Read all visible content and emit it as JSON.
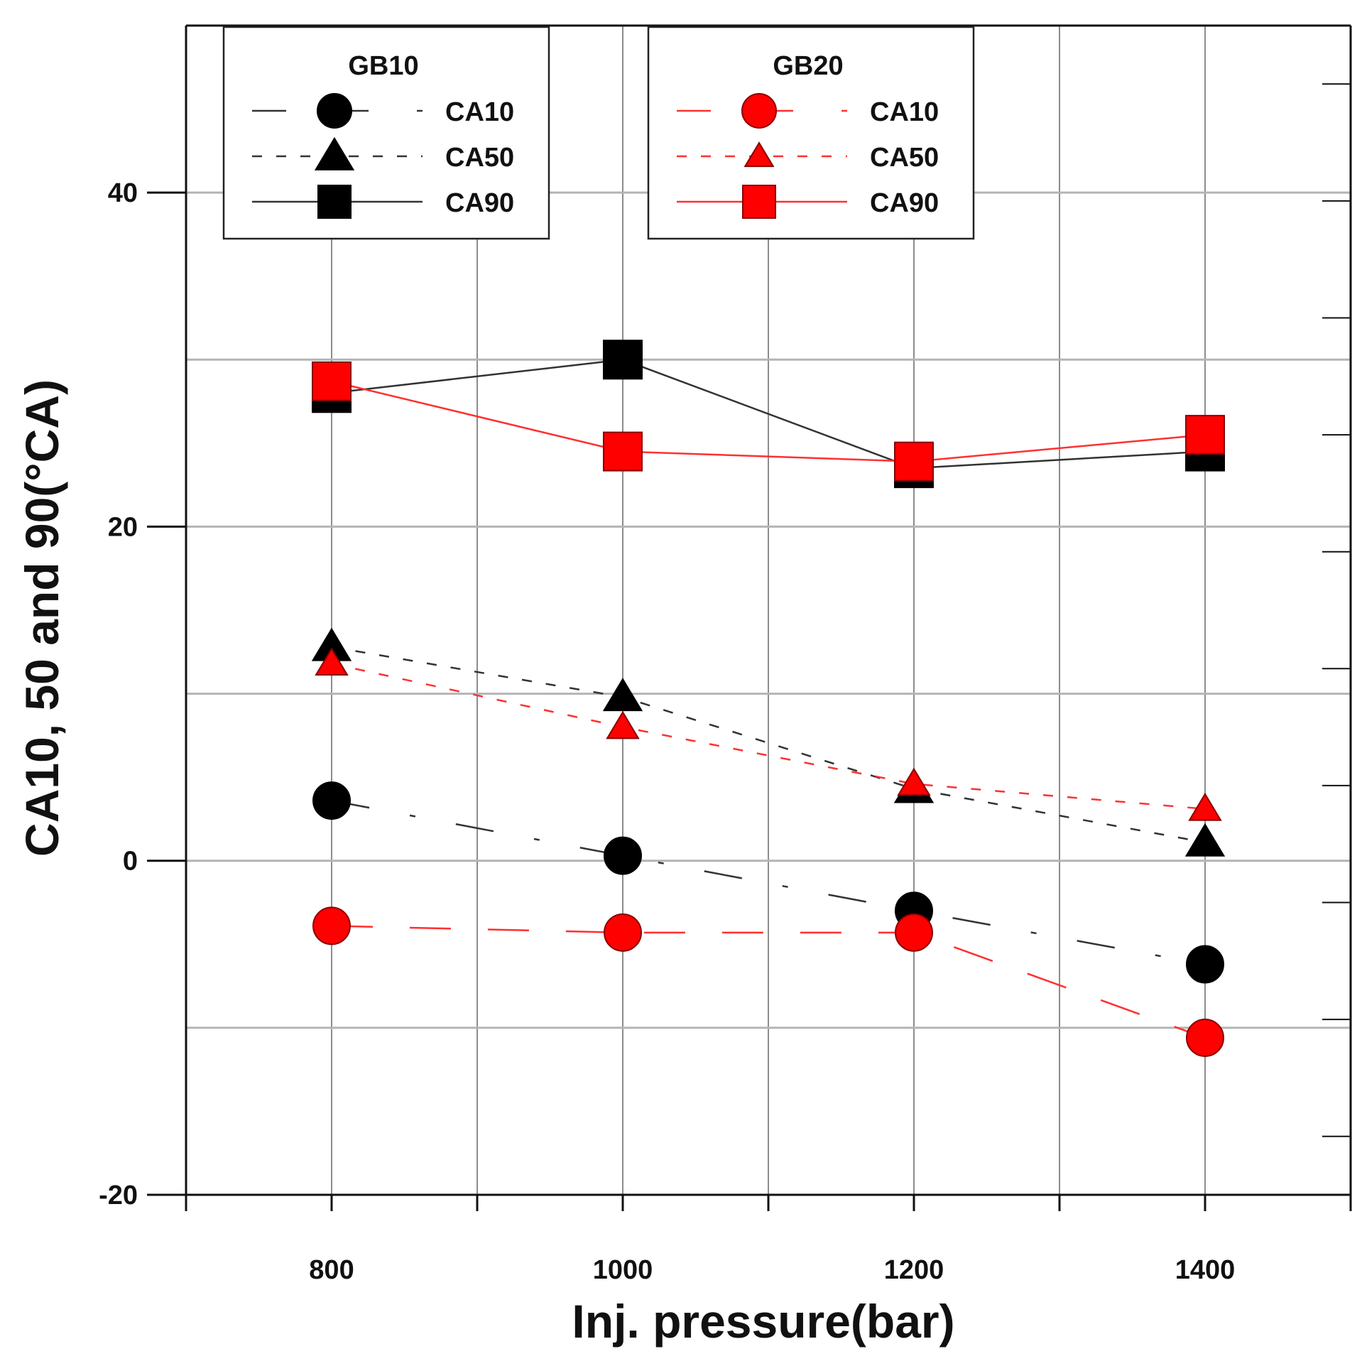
{
  "chart_data": {
    "type": "line",
    "title": "",
    "xlabel": "Inj. pressure(bar)",
    "ylabel": "CA10, 50 and 90(°CA)",
    "xlim": [
      700,
      1500
    ],
    "ylim": [
      -20,
      50
    ],
    "x_ticks": [
      800,
      1000,
      1200,
      1400
    ],
    "x_gridlines": [
      700,
      800,
      900,
      1000,
      1100,
      1200,
      1300,
      1400,
      1500
    ],
    "y_ticks": [
      -20,
      0,
      20,
      40
    ],
    "y_gridlines": [
      -10,
      0,
      10,
      20,
      30,
      40
    ],
    "grid": true,
    "x": [
      800,
      1000,
      1200,
      1400
    ],
    "legends": [
      {
        "title": "GB10",
        "position": "top-left",
        "entries": [
          "CA10",
          "CA50",
          "CA90"
        ]
      },
      {
        "title": "GB20",
        "position": "top-center",
        "entries": [
          "CA10",
          "CA50",
          "CA90"
        ]
      }
    ],
    "series": [
      {
        "group": "GB10",
        "name": "CA10",
        "values": [
          3.6,
          0.3,
          -3.0,
          -6.2
        ],
        "color": "#000000",
        "marker": "circle",
        "dash": "dashdot"
      },
      {
        "group": "GB10",
        "name": "CA50",
        "values": [
          12.8,
          9.8,
          4.3,
          1.1
        ],
        "color": "#000000",
        "marker": "triangle",
        "dash": "shortdash"
      },
      {
        "group": "GB10",
        "name": "CA90",
        "values": [
          28.0,
          30.0,
          23.5,
          24.5
        ],
        "color": "#000000",
        "marker": "square",
        "dash": "solid"
      },
      {
        "group": "GB20",
        "name": "CA10",
        "values": [
          -3.9,
          -4.3,
          -4.3,
          -10.6
        ],
        "color": "#ff0000",
        "marker": "circle",
        "dash": "longdash"
      },
      {
        "group": "GB20",
        "name": "CA50",
        "values": [
          11.8,
          8.0,
          4.6,
          3.1
        ],
        "color": "#ff0000",
        "marker": "triangle",
        "dash": "shortdash"
      },
      {
        "group": "GB20",
        "name": "CA90",
        "values": [
          28.7,
          24.5,
          23.9,
          25.5
        ],
        "color": "#ff0000",
        "marker": "square",
        "dash": "solid"
      }
    ]
  }
}
